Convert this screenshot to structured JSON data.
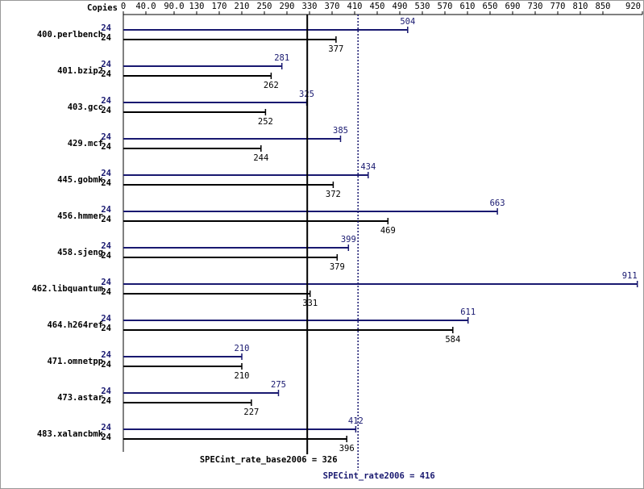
{
  "chart_data": {
    "type": "spec-bar",
    "header": "Copies",
    "categories": [
      "400.perlbench",
      "401.bzip2",
      "403.gcc",
      "429.mcf",
      "445.gobmk",
      "456.hmmer",
      "458.sjeng",
      "462.libquantum",
      "464.h264ref",
      "471.omnetpp",
      "473.astar",
      "483.xalancbmk"
    ],
    "series": [
      {
        "color": "#191970",
        "copies": [
          24,
          24,
          24,
          24,
          24,
          24,
          24,
          24,
          24,
          24,
          24,
          24
        ],
        "values": [
          504,
          281,
          325,
          385,
          434,
          663,
          399,
          911,
          611,
          210,
          275,
          412
        ]
      },
      {
        "color": "#000000",
        "copies": [
          24,
          24,
          24,
          24,
          24,
          24,
          24,
          24,
          24,
          24,
          24,
          24
        ],
        "values": [
          377,
          262,
          252,
          244,
          372,
          469,
          379,
          331,
          584,
          210,
          227,
          396
        ]
      }
    ],
    "xlim": [
      0,
      920
    ],
    "xticks": [
      0,
      {
        "value": 40,
        "label": "40.0"
      },
      {
        "value": 90,
        "label": "90.0"
      },
      130,
      170,
      210,
      250,
      290,
      330,
      370,
      410,
      450,
      490,
      530,
      570,
      610,
      650,
      690,
      730,
      770,
      810,
      850,
      920
    ],
    "annotations": [
      {
        "label": "SPECint_rate_base2006 = 326",
        "value": 326,
        "color": "#000000"
      },
      {
        "label": "SPECint_rate2006 = 416",
        "value": 416,
        "color": "#191970"
      }
    ]
  }
}
